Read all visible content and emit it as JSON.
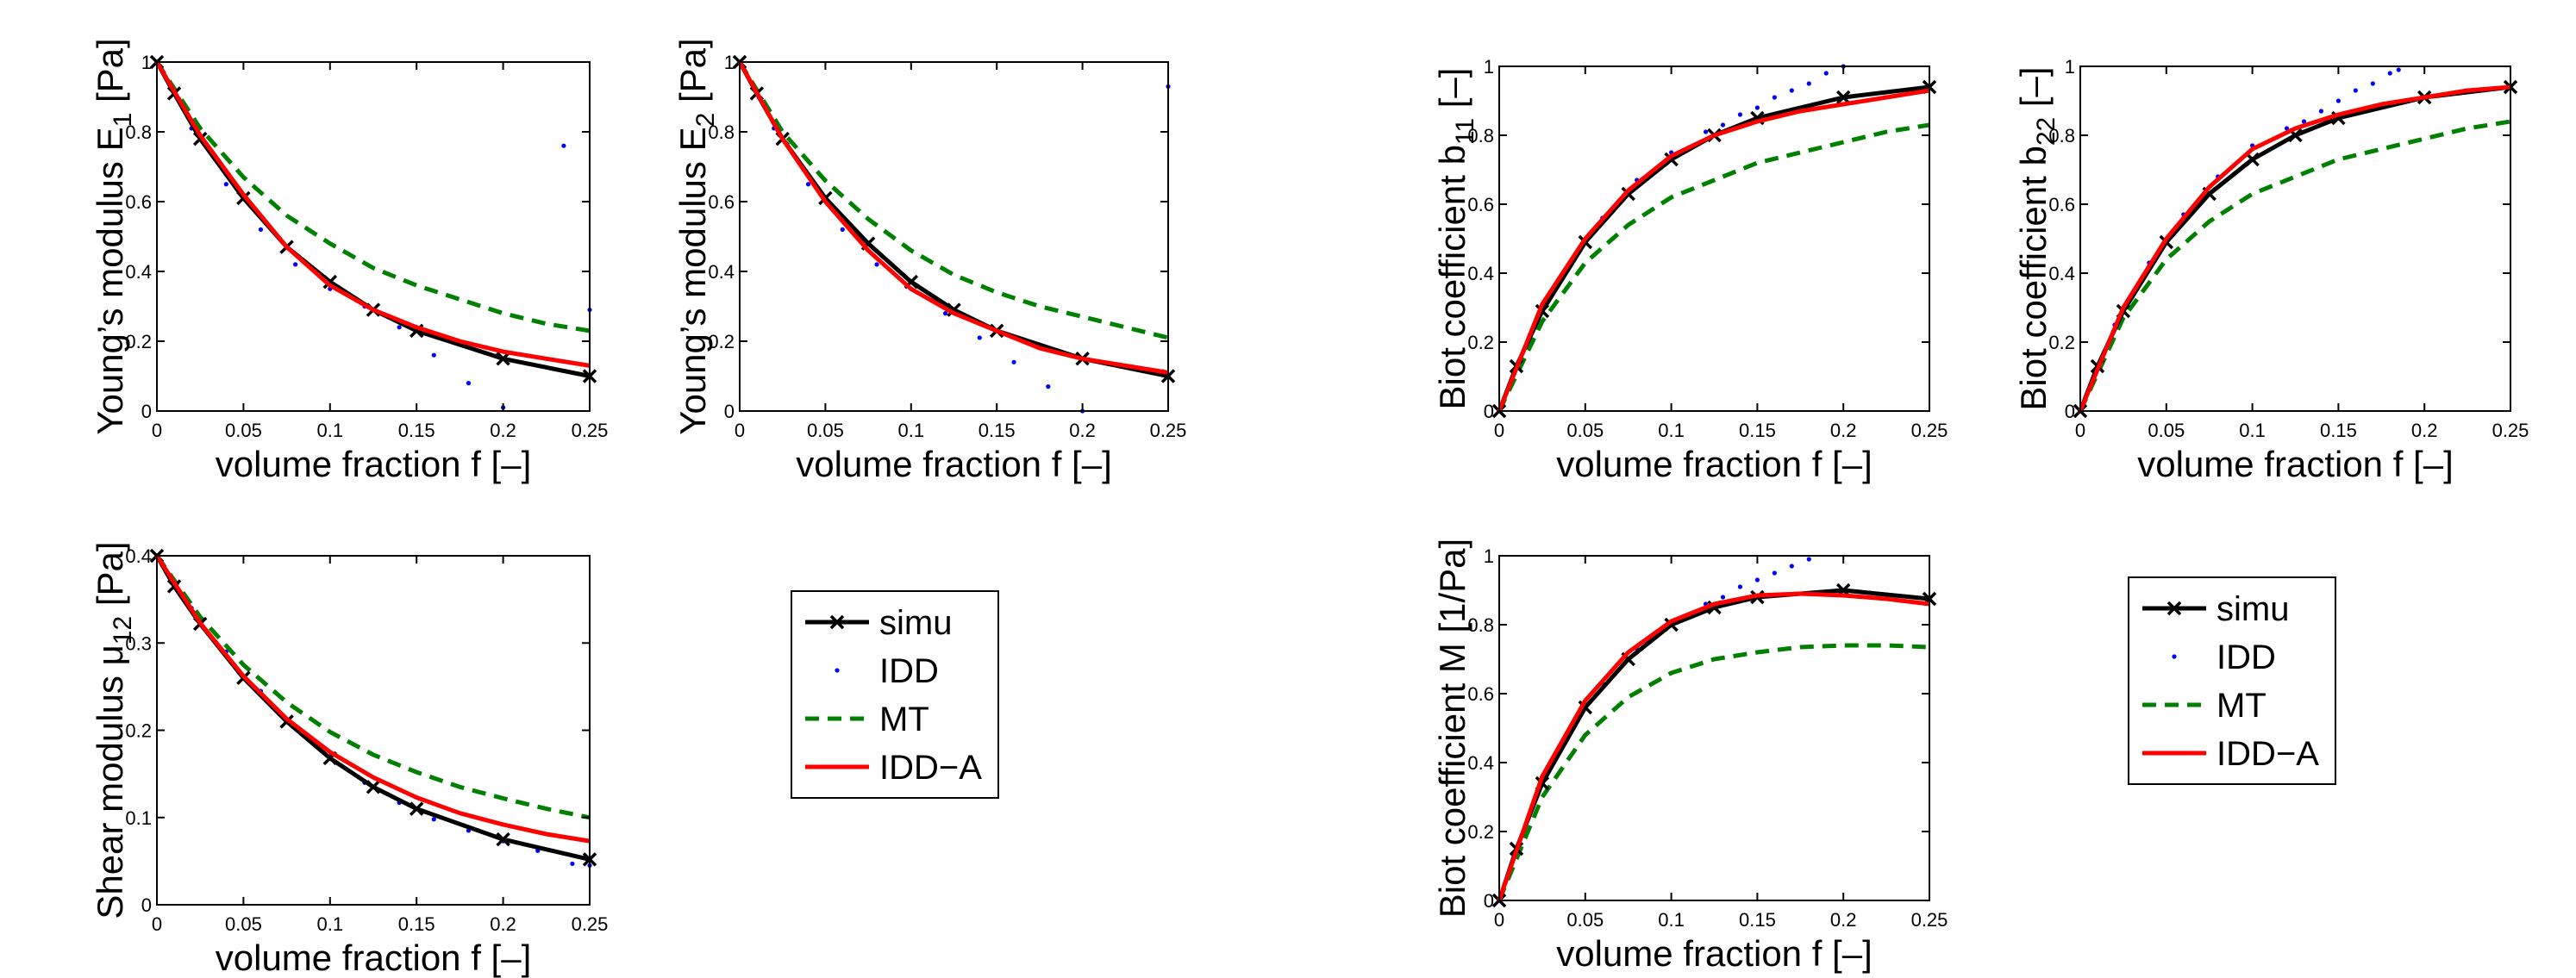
{
  "colors": {
    "simu": "#000000",
    "IDD": "#0000ff",
    "MT": "#008000",
    "IDD-A": "#ff0000"
  },
  "legend": {
    "entries": [
      "simu",
      "IDD",
      "MT",
      "IDD−A"
    ]
  },
  "chart_data": [
    {
      "type": "line",
      "xlabel": "volume fraction f [–]",
      "ylabel": {
        "base": "Young’s modulus E",
        "sub": "1",
        "suffix": " [Pa]"
      },
      "xlim": [
        0,
        0.25
      ],
      "ylim": [
        0,
        1
      ],
      "xticks": [
        0,
        0.05,
        0.1,
        0.15,
        0.2,
        0.25
      ],
      "xtick_labels": [
        "0",
        "0.05",
        "0.1",
        "0.15",
        "0.2",
        "0.25"
      ],
      "yticks": [
        0,
        0.2,
        0.4,
        0.6,
        0.8,
        1
      ],
      "ytick_labels": [
        "0",
        "0.2",
        "0.4",
        "0.6",
        "0.8",
        "1"
      ],
      "series": [
        {
          "name": "simu",
          "style": "marker-line",
          "x": [
            0,
            0.01,
            0.025,
            0.05,
            0.075,
            0.1,
            0.125,
            0.15,
            0.2,
            0.25
          ],
          "y": [
            1.0,
            0.91,
            0.78,
            0.61,
            0.47,
            0.37,
            0.29,
            0.23,
            0.15,
            0.1
          ]
        },
        {
          "name": "IDD",
          "style": "dots",
          "x": [
            0,
            0.02,
            0.04,
            0.06,
            0.08,
            0.1,
            0.12,
            0.14,
            0.16,
            0.18,
            0.2,
            0.235,
            0.25
          ],
          "y": [
            1.0,
            0.81,
            0.65,
            0.52,
            0.42,
            0.35,
            0.3,
            0.24,
            0.16,
            0.08,
            0.01,
            0.76,
            0.29
          ]
        },
        {
          "name": "MT",
          "style": "dashed",
          "x": [
            0,
            0.025,
            0.05,
            0.075,
            0.1,
            0.125,
            0.15,
            0.175,
            0.2,
            0.225,
            0.25
          ],
          "y": [
            1.0,
            0.81,
            0.67,
            0.56,
            0.48,
            0.41,
            0.36,
            0.32,
            0.28,
            0.25,
            0.23
          ]
        },
        {
          "name": "IDD-A",
          "style": "solid",
          "x": [
            0,
            0.025,
            0.05,
            0.075,
            0.1,
            0.125,
            0.15,
            0.175,
            0.2,
            0.225,
            0.25
          ],
          "y": [
            1.0,
            0.79,
            0.62,
            0.47,
            0.36,
            0.29,
            0.24,
            0.2,
            0.17,
            0.15,
            0.13
          ]
        }
      ]
    },
    {
      "type": "line",
      "xlabel": "volume fraction f [–]",
      "ylabel": {
        "base": "Young’s modulus E",
        "sub": "2",
        "suffix": " [Pa]"
      },
      "xlim": [
        0,
        0.25
      ],
      "ylim": [
        0,
        1
      ],
      "xticks": [
        0,
        0.05,
        0.1,
        0.15,
        0.2,
        0.25
      ],
      "xtick_labels": [
        "0",
        "0.05",
        "0.1",
        "0.15",
        "0.2",
        "0.25"
      ],
      "yticks": [
        0,
        0.2,
        0.4,
        0.6,
        0.8,
        1
      ],
      "ytick_labels": [
        "0",
        "0.2",
        "0.4",
        "0.6",
        "0.8",
        "1"
      ],
      "series": [
        {
          "name": "simu",
          "style": "marker-line",
          "x": [
            0,
            0.01,
            0.025,
            0.05,
            0.075,
            0.1,
            0.125,
            0.15,
            0.2,
            0.25
          ],
          "y": [
            1.0,
            0.91,
            0.78,
            0.61,
            0.48,
            0.37,
            0.29,
            0.23,
            0.15,
            0.1
          ]
        },
        {
          "name": "IDD",
          "style": "dots",
          "x": [
            0,
            0.02,
            0.04,
            0.06,
            0.08,
            0.1,
            0.12,
            0.14,
            0.16,
            0.18,
            0.2,
            0.25
          ],
          "y": [
            1.0,
            0.81,
            0.65,
            0.52,
            0.42,
            0.35,
            0.28,
            0.21,
            0.14,
            0.07,
            0.0,
            0.93
          ]
        },
        {
          "name": "MT",
          "style": "dashed",
          "x": [
            0,
            0.025,
            0.05,
            0.075,
            0.1,
            0.125,
            0.15,
            0.175,
            0.2,
            0.225,
            0.25
          ],
          "y": [
            1.0,
            0.8,
            0.66,
            0.55,
            0.46,
            0.39,
            0.34,
            0.3,
            0.27,
            0.24,
            0.21
          ]
        },
        {
          "name": "IDD-A",
          "style": "solid",
          "x": [
            0,
            0.025,
            0.05,
            0.075,
            0.1,
            0.125,
            0.15,
            0.175,
            0.2,
            0.225,
            0.25
          ],
          "y": [
            1.0,
            0.78,
            0.6,
            0.46,
            0.35,
            0.28,
            0.23,
            0.18,
            0.15,
            0.13,
            0.11
          ]
        }
      ]
    },
    {
      "type": "line",
      "xlabel": "volume fraction f [–]",
      "ylabel": {
        "base": "Shear modulus μ",
        "sub": "12",
        "suffix": " [Pa]"
      },
      "xlim": [
        0,
        0.25
      ],
      "ylim": [
        0,
        0.4
      ],
      "xticks": [
        0,
        0.05,
        0.1,
        0.15,
        0.2,
        0.25
      ],
      "xtick_labels": [
        "0",
        "0.05",
        "0.1",
        "0.15",
        "0.2",
        "0.25"
      ],
      "yticks": [
        0,
        0.1,
        0.2,
        0.3,
        0.4
      ],
      "ytick_labels": [
        "0",
        "0.1",
        "0.2",
        "0.3",
        "0.4"
      ],
      "series": [
        {
          "name": "simu",
          "style": "marker-line",
          "x": [
            0,
            0.01,
            0.025,
            0.05,
            0.075,
            0.1,
            0.125,
            0.15,
            0.2,
            0.25
          ],
          "y": [
            0.4,
            0.365,
            0.322,
            0.26,
            0.21,
            0.168,
            0.135,
            0.11,
            0.075,
            0.052
          ]
        },
        {
          "name": "IDD",
          "style": "dots",
          "x": [
            0,
            0.02,
            0.04,
            0.06,
            0.08,
            0.1,
            0.12,
            0.14,
            0.16,
            0.18,
            0.2,
            0.22,
            0.24,
            0.25
          ],
          "y": [
            0.4,
            0.34,
            0.29,
            0.245,
            0.205,
            0.17,
            0.14,
            0.117,
            0.098,
            0.085,
            0.073,
            0.062,
            0.047,
            0.045
          ]
        },
        {
          "name": "MT",
          "style": "dashed",
          "x": [
            0,
            0.025,
            0.05,
            0.075,
            0.1,
            0.125,
            0.15,
            0.175,
            0.2,
            0.225,
            0.25
          ],
          "y": [
            0.4,
            0.33,
            0.275,
            0.232,
            0.198,
            0.172,
            0.152,
            0.135,
            0.122,
            0.11,
            0.1
          ]
        },
        {
          "name": "IDD-A",
          "style": "solid",
          "x": [
            0,
            0.025,
            0.05,
            0.075,
            0.1,
            0.125,
            0.15,
            0.175,
            0.2,
            0.225,
            0.25
          ],
          "y": [
            0.4,
            0.323,
            0.262,
            0.213,
            0.175,
            0.146,
            0.123,
            0.105,
            0.092,
            0.081,
            0.073
          ]
        }
      ]
    },
    {
      "type": "line",
      "xlabel": "volume fraction f [–]",
      "ylabel": {
        "base": "Biot coefficient b",
        "sub": "11",
        "suffix": " [–]"
      },
      "xlim": [
        0,
        0.25
      ],
      "ylim": [
        0,
        1
      ],
      "xticks": [
        0,
        0.05,
        0.1,
        0.15,
        0.2,
        0.25
      ],
      "xtick_labels": [
        "0",
        "0.05",
        "0.1",
        "0.15",
        "0.2",
        "0.25"
      ],
      "yticks": [
        0,
        0.2,
        0.4,
        0.6,
        0.8,
        1
      ],
      "ytick_labels": [
        "0",
        "0.2",
        "0.4",
        "0.6",
        "0.8",
        "1"
      ],
      "series": [
        {
          "name": "simu",
          "style": "marker-line",
          "x": [
            0,
            0.01,
            0.025,
            0.05,
            0.075,
            0.1,
            0.125,
            0.15,
            0.2,
            0.25
          ],
          "y": [
            0.0,
            0.13,
            0.29,
            0.49,
            0.63,
            0.73,
            0.8,
            0.85,
            0.91,
            0.94
          ]
        },
        {
          "name": "IDD",
          "style": "dots",
          "x": [
            0,
            0.02,
            0.04,
            0.06,
            0.08,
            0.1,
            0.12,
            0.13,
            0.14,
            0.15,
            0.16,
            0.17,
            0.18,
            0.19,
            0.2
          ],
          "y": [
            0.0,
            0.24,
            0.42,
            0.56,
            0.67,
            0.75,
            0.81,
            0.83,
            0.86,
            0.88,
            0.91,
            0.93,
            0.95,
            0.98,
            1.0
          ]
        },
        {
          "name": "MT",
          "style": "dashed",
          "x": [
            0,
            0.025,
            0.05,
            0.075,
            0.1,
            0.125,
            0.15,
            0.175,
            0.2,
            0.225,
            0.25
          ],
          "y": [
            0.0,
            0.26,
            0.43,
            0.54,
            0.62,
            0.67,
            0.72,
            0.75,
            0.78,
            0.81,
            0.83
          ]
        },
        {
          "name": "IDD-A",
          "style": "solid",
          "x": [
            0,
            0.025,
            0.05,
            0.075,
            0.1,
            0.125,
            0.15,
            0.175,
            0.2,
            0.225,
            0.25
          ],
          "y": [
            0.0,
            0.31,
            0.5,
            0.64,
            0.74,
            0.8,
            0.84,
            0.87,
            0.89,
            0.91,
            0.93
          ]
        }
      ]
    },
    {
      "type": "line",
      "xlabel": "volume fraction f [–]",
      "ylabel": {
        "base": "Biot coefficient b",
        "sub": "22",
        "suffix": " [–]"
      },
      "xlim": [
        0,
        0.25
      ],
      "ylim": [
        0,
        1
      ],
      "xticks": [
        0,
        0.05,
        0.1,
        0.15,
        0.2,
        0.25
      ],
      "xtick_labels": [
        "0",
        "0.05",
        "0.1",
        "0.15",
        "0.2",
        "0.25"
      ],
      "yticks": [
        0,
        0.2,
        0.4,
        0.6,
        0.8,
        1
      ],
      "ytick_labels": [
        "0",
        "0.2",
        "0.4",
        "0.6",
        "0.8",
        "1"
      ],
      "series": [
        {
          "name": "simu",
          "style": "marker-line",
          "x": [
            0,
            0.01,
            0.025,
            0.05,
            0.075,
            0.1,
            0.125,
            0.15,
            0.2,
            0.25
          ],
          "y": [
            0.0,
            0.13,
            0.29,
            0.49,
            0.63,
            0.73,
            0.8,
            0.85,
            0.91,
            0.94
          ]
        },
        {
          "name": "IDD",
          "style": "dots",
          "x": [
            0,
            0.02,
            0.04,
            0.06,
            0.08,
            0.1,
            0.12,
            0.13,
            0.14,
            0.15,
            0.16,
            0.17,
            0.18,
            0.185
          ],
          "y": [
            0.0,
            0.25,
            0.43,
            0.57,
            0.68,
            0.77,
            0.82,
            0.84,
            0.87,
            0.9,
            0.93,
            0.95,
            0.98,
            0.99
          ]
        },
        {
          "name": "MT",
          "style": "dashed",
          "x": [
            0,
            0.025,
            0.05,
            0.075,
            0.1,
            0.125,
            0.15,
            0.175,
            0.2,
            0.225,
            0.25
          ],
          "y": [
            0.0,
            0.27,
            0.44,
            0.55,
            0.63,
            0.68,
            0.73,
            0.76,
            0.79,
            0.82,
            0.84
          ]
        },
        {
          "name": "IDD-A",
          "style": "solid",
          "x": [
            0,
            0.025,
            0.05,
            0.075,
            0.1,
            0.125,
            0.15,
            0.175,
            0.2,
            0.225,
            0.25
          ],
          "y": [
            0.0,
            0.3,
            0.5,
            0.65,
            0.76,
            0.82,
            0.86,
            0.89,
            0.91,
            0.93,
            0.94
          ]
        }
      ]
    },
    {
      "type": "line",
      "xlabel": "volume fraction f [–]",
      "ylabel": {
        "base": "Biot coefficient M [1/Pa]",
        "sub": "",
        "suffix": ""
      },
      "xlim": [
        0,
        0.25
      ],
      "ylim": [
        0,
        1
      ],
      "xticks": [
        0,
        0.05,
        0.1,
        0.15,
        0.2,
        0.25
      ],
      "xtick_labels": [
        "0",
        "0.05",
        "0.1",
        "0.15",
        "0.2",
        "0.25"
      ],
      "yticks": [
        0,
        0.2,
        0.4,
        0.6,
        0.8,
        1
      ],
      "ytick_labels": [
        "0",
        "0.2",
        "0.4",
        "0.6",
        "0.8",
        "1"
      ],
      "series": [
        {
          "name": "simu",
          "style": "marker-line",
          "x": [
            0,
            0.01,
            0.025,
            0.05,
            0.075,
            0.1,
            0.125,
            0.15,
            0.2,
            0.25
          ],
          "y": [
            0.0,
            0.15,
            0.34,
            0.56,
            0.7,
            0.8,
            0.85,
            0.88,
            0.9,
            0.875
          ]
        },
        {
          "name": "IDD",
          "style": "dots",
          "x": [
            0,
            0.02,
            0.04,
            0.06,
            0.08,
            0.1,
            0.12,
            0.13,
            0.14,
            0.15,
            0.16,
            0.17,
            0.18
          ],
          "y": [
            0.0,
            0.28,
            0.48,
            0.63,
            0.73,
            0.8,
            0.86,
            0.88,
            0.91,
            0.93,
            0.95,
            0.97,
            0.99
          ]
        },
        {
          "name": "MT",
          "style": "dashed",
          "x": [
            0,
            0.025,
            0.05,
            0.075,
            0.1,
            0.125,
            0.15,
            0.175,
            0.2,
            0.225,
            0.25
          ],
          "y": [
            0.0,
            0.3,
            0.48,
            0.59,
            0.66,
            0.7,
            0.72,
            0.735,
            0.74,
            0.74,
            0.735
          ]
        },
        {
          "name": "IDD-A",
          "style": "solid",
          "x": [
            0,
            0.025,
            0.05,
            0.075,
            0.1,
            0.125,
            0.15,
            0.175,
            0.2,
            0.225,
            0.25
          ],
          "y": [
            0.0,
            0.36,
            0.58,
            0.72,
            0.81,
            0.86,
            0.885,
            0.89,
            0.885,
            0.875,
            0.86
          ]
        }
      ]
    }
  ]
}
